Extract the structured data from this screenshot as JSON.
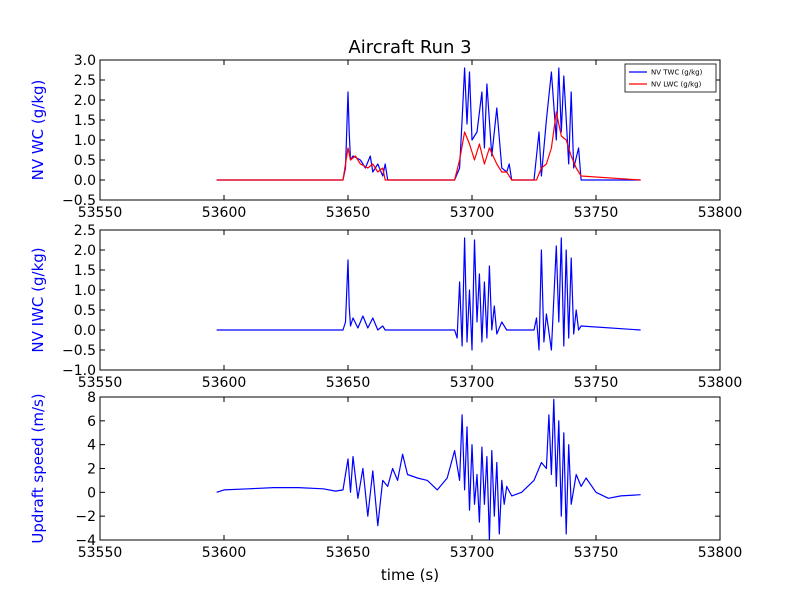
{
  "colors": {
    "twc": "#0000ff",
    "lwc": "#ff0000",
    "iwc": "#0000ff",
    "updraft": "#0000ff",
    "ylabel": "#0000ff"
  },
  "chart_data": [
    {
      "type": "line",
      "title": "Aircraft Run 3",
      "xlabel": "",
      "ylabel": "NV WC (g/kg)",
      "xlim": [
        53550,
        53800
      ],
      "ylim": [
        -0.5,
        3.0
      ],
      "xticks": [
        "53550",
        "53600",
        "53650",
        "53700",
        "53750",
        "53800"
      ],
      "yticks": [
        "−0.5",
        "0.0",
        "0.5",
        "1.0",
        "1.5",
        "2.0",
        "2.5",
        "3.0"
      ],
      "legend": {
        "position": "top-right"
      },
      "series": [
        {
          "name": "NV TWC (g/kg)",
          "color": "#0000ff",
          "x": [
            53597,
            53648,
            53649,
            53650,
            53650.5,
            53651,
            53652,
            53655,
            53657,
            53659,
            53660,
            53662,
            53664,
            53665,
            53666,
            53693,
            53695,
            53696,
            53697,
            53698,
            53699,
            53700,
            53702,
            53704,
            53705,
            53706,
            53708,
            53710,
            53712,
            53714,
            53715,
            53716,
            53725,
            53727,
            53728,
            53730,
            53732,
            53734,
            53735,
            53736,
            53737,
            53739,
            53740,
            53741,
            53743,
            53744,
            53768
          ],
          "y": [
            0.0,
            0.0,
            0.3,
            2.2,
            1.2,
            0.5,
            0.6,
            0.5,
            0.3,
            0.6,
            0.2,
            0.4,
            0.1,
            0.4,
            0.0,
            0.0,
            0.3,
            1.5,
            2.8,
            1.4,
            2.7,
            1.0,
            1.2,
            2.2,
            0.8,
            2.4,
            0.6,
            1.8,
            0.3,
            0.2,
            0.4,
            0.0,
            0.0,
            1.2,
            0.1,
            1.5,
            2.7,
            1.0,
            2.8,
            1.2,
            2.6,
            0.4,
            2.2,
            0.3,
            0.8,
            0.0,
            0.0
          ]
        },
        {
          "name": "NV LWC (g/kg)",
          "color": "#ff0000",
          "x": [
            53597,
            53648,
            53650,
            53651,
            53653,
            53655,
            53658,
            53660,
            53662,
            53664,
            53665,
            53693,
            53695,
            53697,
            53699,
            53701,
            53703,
            53705,
            53707,
            53710,
            53712,
            53714,
            53716,
            53726,
            53728,
            53730,
            53732,
            53734,
            53736,
            53738,
            53740,
            53742,
            53744,
            53768
          ],
          "y": [
            0.0,
            0.0,
            0.8,
            0.5,
            0.6,
            0.4,
            0.3,
            0.4,
            0.2,
            0.3,
            0.0,
            0.0,
            0.5,
            1.2,
            0.9,
            0.5,
            0.9,
            0.4,
            0.8,
            0.4,
            0.2,
            0.2,
            0.0,
            0.0,
            0.3,
            0.4,
            0.8,
            1.7,
            1.1,
            1.0,
            0.6,
            0.3,
            0.1,
            0.0
          ]
        }
      ]
    },
    {
      "type": "line",
      "title": "",
      "xlabel": "",
      "ylabel": "NV IWC (g/kg)",
      "xlim": [
        53550,
        53800
      ],
      "ylim": [
        -1.0,
        2.5
      ],
      "xticks": [
        "53550",
        "53600",
        "53650",
        "53700",
        "53750",
        "53800"
      ],
      "yticks": [
        "−1.0",
        "−0.5",
        "0.0",
        "0.5",
        "1.0",
        "1.5",
        "2.0",
        "2.5"
      ],
      "series": [
        {
          "color": "#0000ff",
          "x": [
            53597,
            53648,
            53649,
            53650,
            53650.5,
            53651,
            53652,
            53654,
            53656,
            53658,
            53660,
            53662,
            53664,
            53665,
            53693,
            53694,
            53695,
            53696,
            53697,
            53698,
            53699,
            53700,
            53701,
            53702,
            53703,
            53704,
            53705,
            53706,
            53707,
            53708,
            53709,
            53710,
            53712,
            53714,
            53716,
            53725,
            53726,
            53727,
            53728,
            53729,
            53730,
            53732,
            53734,
            53735,
            53736,
            53737,
            53738,
            53739,
            53740,
            53741,
            53742,
            53743,
            53744,
            53768
          ],
          "y": [
            0.0,
            0.0,
            0.2,
            1.75,
            0.6,
            0.1,
            0.3,
            0.05,
            0.35,
            0.05,
            0.3,
            0.0,
            0.1,
            0.0,
            0.0,
            -0.2,
            1.2,
            -0.4,
            2.3,
            -0.3,
            1.0,
            -0.5,
            2.25,
            0.2,
            1.4,
            -0.3,
            1.2,
            -0.2,
            1.6,
            0.0,
            0.6,
            -0.1,
            0.2,
            0.0,
            0.0,
            0.0,
            0.3,
            -0.5,
            2.0,
            -0.3,
            0.4,
            -0.5,
            2.1,
            0.2,
            2.3,
            -0.4,
            2.0,
            -0.2,
            1.8,
            -0.1,
            0.5,
            0.0,
            0.1,
            0.0
          ]
        }
      ]
    },
    {
      "type": "line",
      "title": "",
      "xlabel": "time (s)",
      "ylabel": "Updraft speed (m/s)",
      "xlim": [
        53550,
        53800
      ],
      "ylim": [
        -4,
        8
      ],
      "xticks": [
        "53550",
        "53600",
        "53650",
        "53700",
        "53750",
        "53800"
      ],
      "yticks": [
        "−4",
        "−2",
        "0",
        "2",
        "4",
        "6",
        "8"
      ],
      "series": [
        {
          "color": "#0000ff",
          "x": [
            53597,
            53600,
            53610,
            53620,
            53630,
            53640,
            53645,
            53648,
            53650,
            53651,
            53652,
            53654,
            53656,
            53658,
            53660,
            53662,
            53664,
            53666,
            53668,
            53670,
            53672,
            53674,
            53678,
            53682,
            53686,
            53690,
            53693,
            53695,
            53696,
            53697,
            53698,
            53699,
            53700,
            53701,
            53702,
            53703,
            53704,
            53705,
            53706,
            53707,
            53708,
            53709,
            53710,
            53711,
            53712,
            53713,
            53714,
            53716,
            53720,
            53725,
            53728,
            53730,
            53731,
            53732,
            53733,
            53734,
            53735,
            53736,
            53737,
            53738,
            53739,
            53740,
            53742,
            53744,
            53746,
            53750,
            53755,
            53760,
            53768
          ],
          "y": [
            0.0,
            0.2,
            0.3,
            0.4,
            0.4,
            0.3,
            0.1,
            0.2,
            2.8,
            0.0,
            3.0,
            -0.5,
            2.0,
            -2.0,
            1.8,
            -2.8,
            1.0,
            0.5,
            2.0,
            1.0,
            3.2,
            1.5,
            1.2,
            1.0,
            0.2,
            1.2,
            3.5,
            1.0,
            6.5,
            0.2,
            5.5,
            -1.5,
            4.0,
            -1.0,
            1.5,
            -2.5,
            3.8,
            -1.0,
            3.0,
            -4.0,
            3.5,
            -2.0,
            2.5,
            -3.5,
            1.0,
            -1.0,
            0.5,
            -0.3,
            0.0,
            1.0,
            2.5,
            2.0,
            6.5,
            1.5,
            7.8,
            0.5,
            6.0,
            -2.0,
            5.0,
            -3.5,
            4.0,
            -1.0,
            1.5,
            0.5,
            1.2,
            0.0,
            -0.5,
            -0.3,
            -0.2
          ]
        }
      ]
    }
  ]
}
